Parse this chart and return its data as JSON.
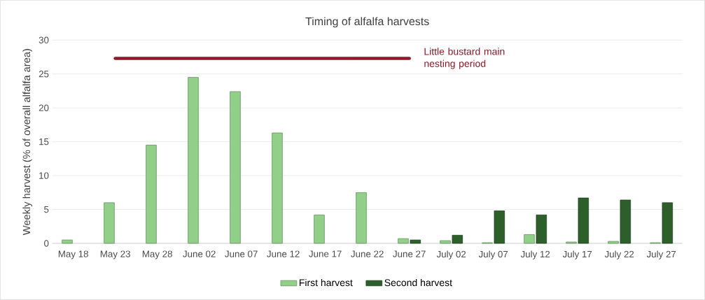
{
  "chart_data": {
    "type": "bar",
    "title": "Timing of alfalfa harvests",
    "ylabel": "Weekly harvest (% of overall alfalfa area)",
    "categories": [
      "May 18",
      "May 23",
      "May 28",
      "June 02",
      "June 07",
      "June 12",
      "June 17",
      "June 22",
      "June 27",
      "July 02",
      "July 07",
      "July 12",
      "July 17",
      "July 22",
      "July 27"
    ],
    "series": [
      {
        "name": "First harvest",
        "color": "#92d08a",
        "values": [
          0.5,
          6.0,
          14.5,
          24.5,
          22.4,
          16.3,
          4.2,
          7.5,
          0.7,
          0.4,
          0.1,
          1.3,
          0.2,
          0.3,
          0.1
        ]
      },
      {
        "name": "Second harvest",
        "color": "#2d5f2a",
        "values": [
          null,
          null,
          null,
          null,
          null,
          null,
          null,
          null,
          0.5,
          1.2,
          4.8,
          4.2,
          6.7,
          6.4,
          6.0
        ]
      },
      {
        "name": "Little bustard main nesting period",
        "type": "line",
        "color": "#8b1a2a",
        "values": [
          null,
          27.3,
          27.3,
          27.3,
          27.3,
          27.3,
          27.3,
          27.3,
          27.3,
          null,
          null,
          null,
          null,
          null,
          null
        ]
      }
    ],
    "ylim": [
      0,
      30
    ],
    "yticks": [
      0,
      5,
      10,
      15,
      20,
      25,
      30
    ],
    "grid": "y",
    "legend": "bottom"
  }
}
